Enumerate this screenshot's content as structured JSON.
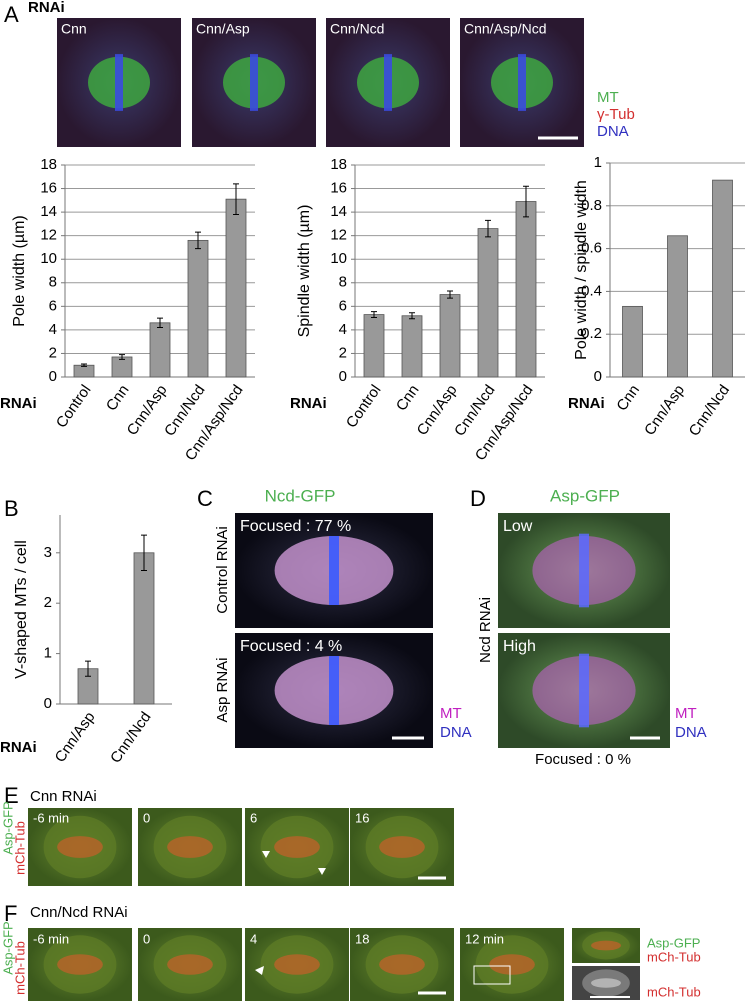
{
  "panel_labels": [
    "A",
    "B",
    "C",
    "D",
    "E",
    "F"
  ],
  "panel_a": {
    "rnai_label": "RNAi",
    "images": [
      "Cnn",
      "Cnn/Asp",
      "Cnn/Ncd",
      "Cnn/Asp/Ncd"
    ],
    "legend": [
      "MT",
      "γ-Tub",
      "DNA"
    ]
  },
  "chart_data": [
    {
      "type": "bar",
      "y_label": "Pole width (µm)",
      "x_label": "RNAi",
      "categories": [
        "Control",
        "Cnn",
        "Cnn/Asp",
        "Cnn/Ncd",
        "Cnn/Asp/Ncd"
      ],
      "values": [
        1.0,
        1.7,
        4.6,
        11.6,
        15.1
      ],
      "errors": [
        0.1,
        0.2,
        0.4,
        0.7,
        1.3
      ],
      "color": "#999999",
      "ylim": [
        0,
        18
      ],
      "yticks": [
        0,
        2,
        4,
        6,
        8,
        10,
        12,
        14,
        16,
        18
      ],
      "grid": true
    },
    {
      "type": "bar",
      "y_label": "Spindle width (µm)",
      "x_label": "RNAi",
      "categories": [
        "Control",
        "Cnn",
        "Cnn/Asp",
        "Cnn/Ncd",
        "Cnn/Asp/Ncd"
      ],
      "values": [
        5.3,
        5.2,
        7.0,
        12.6,
        14.9
      ],
      "errors": [
        0.25,
        0.25,
        0.3,
        0.7,
        1.3
      ],
      "color": "#999999",
      "ylim": [
        0,
        18
      ],
      "yticks": [
        0,
        2,
        4,
        6,
        8,
        10,
        12,
        14,
        16,
        18
      ],
      "grid": true
    },
    {
      "type": "bar",
      "y_label": "Pole width / spindle width",
      "x_label": "RNAi",
      "categories": [
        "Cnn",
        "Cnn/Asp",
        "Cnn/Ncd"
      ],
      "values": [
        0.33,
        0.66,
        0.92
      ],
      "color": "#999999",
      "ylim": [
        0,
        1
      ],
      "yticks": [
        0,
        0.2,
        0.4,
        0.6,
        0.8,
        1
      ],
      "grid": true
    },
    {
      "type": "bar",
      "y_label": "V-shaped MTs / cell",
      "x_label": "RNAi",
      "categories": [
        "Cnn/Asp",
        "Cnn/Ncd"
      ],
      "values": [
        0.7,
        3.0
      ],
      "errors": [
        0.15,
        0.35
      ],
      "color": "#999999",
      "ylim": [
        0,
        3.75
      ],
      "yticks": [
        0,
        1,
        2,
        3
      ],
      "grid": false
    }
  ],
  "panel_c": {
    "title": "Ncd-GFP",
    "rows": [
      {
        "label": "Control RNAi",
        "note": "Focused : 77 %"
      },
      {
        "label": "Asp RNAi",
        "note": "Focused : 4 %"
      }
    ],
    "legend": [
      "MT",
      "DNA"
    ]
  },
  "panel_d": {
    "title": "Asp-GFP",
    "row_label": "Ncd RNAi",
    "rows": [
      "Low",
      "High"
    ],
    "legend": [
      "MT",
      "DNA"
    ],
    "note": "Focused : 0 %"
  },
  "panel_e": {
    "title": "Cnn RNAi",
    "side_labels": [
      "Asp-GFP",
      "mCh-Tub"
    ],
    "times": [
      "-6 min",
      "0",
      "6",
      "16"
    ]
  },
  "panel_f": {
    "title": "Cnn/Ncd RNAi",
    "side_labels": [
      "Asp-GFP",
      "mCh-Tub"
    ],
    "times": [
      "-6 min",
      "0",
      "4",
      "18",
      "12 min"
    ],
    "inset_labels": [
      "Asp-GFP",
      "mCh-Tub",
      "mCh-Tub"
    ]
  }
}
